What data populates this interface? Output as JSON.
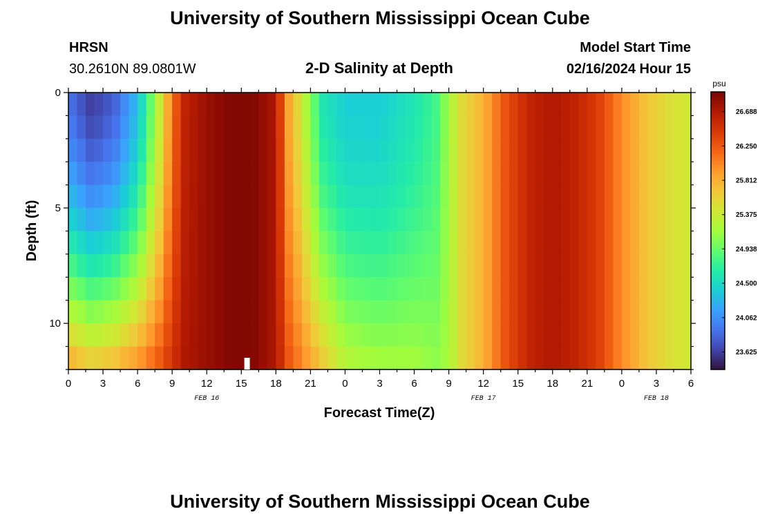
{
  "page": {
    "title": "University of Southern Mississippi Ocean Cube",
    "title_repeat": "University of Southern Mississippi Ocean Cube"
  },
  "header": {
    "station": "HRSN",
    "coords": "30.2610N  89.0801W",
    "subtitle": "2-D Salinity at Depth",
    "start_label": "Model Start Time",
    "start_value": "02/16/2024 Hour 15"
  },
  "chart_data": {
    "type": "heatmap",
    "title": "2-D Salinity at Depth",
    "xlabel": "Forecast Time(Z)",
    "ylabel": "Depth (ft)",
    "x_range_hours": [
      0,
      54
    ],
    "xlim": [
      "2024-02-16T00:00Z",
      "2024-02-18T06:00Z"
    ],
    "ylim": [
      0,
      12
    ],
    "y_inverted": true,
    "x_tick_labels": [
      "0",
      "3",
      "6",
      "9",
      "12",
      "15",
      "18",
      "21",
      "0",
      "3",
      "6",
      "9",
      "12",
      "15",
      "18",
      "21",
      "0",
      "3",
      "6"
    ],
    "y_tick_labels": [
      "0",
      "5",
      "10"
    ],
    "date_labels": [
      {
        "text": "FEB 16",
        "at": "2024-02-16T12:00Z"
      },
      {
        "text": "FEB 17",
        "at": "2024-02-17T12:00Z"
      },
      {
        "text": "FEB 18",
        "at": "2024-02-18T03:00Z"
      }
    ],
    "colorbar": {
      "unit": "psu",
      "min": 23.4,
      "max": 26.94,
      "ticks": [
        "26.688",
        "26.250",
        "25.812",
        "25.375",
        "24.938",
        "24.500",
        "24.062",
        "23.625"
      ]
    },
    "now_marker": "2024-02-16T15:30Z",
    "depths_ft": [
      0,
      1,
      2,
      3,
      4,
      5,
      6,
      7,
      8,
      9,
      10,
      11,
      12
    ],
    "time_hours": [
      0,
      2,
      4,
      6,
      8,
      9,
      10,
      12,
      14,
      16,
      18,
      19,
      20,
      22,
      24,
      27,
      30,
      32,
      33,
      34,
      36,
      38,
      40,
      42,
      44,
      46,
      48,
      50,
      52,
      54
    ],
    "salinity_surface_psu": [
      23.9,
      23.6,
      23.8,
      24.3,
      25.4,
      26.1,
      26.6,
      26.8,
      26.9,
      26.9,
      26.7,
      25.9,
      25.5,
      24.6,
      24.4,
      24.4,
      24.6,
      24.8,
      25.2,
      25.5,
      25.8,
      26.3,
      26.6,
      26.7,
      26.6,
      26.4,
      26.0,
      25.7,
      25.5,
      25.4
    ],
    "salinity_bottom_psu": [
      25.9,
      25.7,
      25.8,
      26.0,
      26.3,
      26.5,
      26.7,
      26.8,
      26.9,
      26.9,
      26.7,
      26.3,
      26.1,
      25.7,
      25.3,
      25.2,
      25.2,
      25.1,
      25.2,
      25.5,
      25.8,
      26.3,
      26.6,
      26.7,
      26.6,
      26.4,
      26.0,
      25.7,
      25.5,
      25.4
    ],
    "colors": {
      "colormap": [
        "#30123b",
        "#4145ab",
        "#4675ed",
        "#39a2fc",
        "#1bcfd4",
        "#24eca6",
        "#61fc6c",
        "#a4fc3b",
        "#d1e834",
        "#f3c63a",
        "#fe9b2d",
        "#f36315",
        "#d93806",
        "#b11901",
        "#7a0403"
      ]
    }
  }
}
